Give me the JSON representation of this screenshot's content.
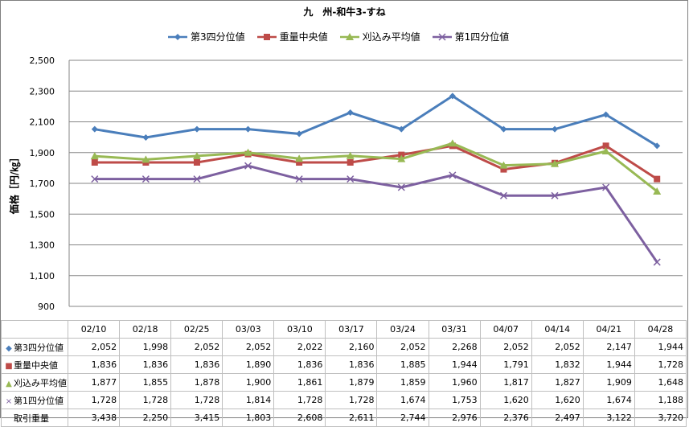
{
  "chart_data": {
    "type": "line",
    "title": "九　州-和牛3-すね",
    "ylabel": "価格［円/㎏］",
    "xlabel": "",
    "ylim": [
      900,
      2500
    ],
    "yticks": [
      "2,500",
      "2,300",
      "2,100",
      "1,900",
      "1,700",
      "1,500",
      "1,300",
      "1,100",
      "900"
    ],
    "grid": true,
    "legend_position": "top",
    "categories": [
      "02/10",
      "02/18",
      "02/25",
      "03/03",
      "03/10",
      "03/17",
      "03/24",
      "03/31",
      "04/07",
      "04/14",
      "04/21",
      "04/28"
    ],
    "series": [
      {
        "name": "第3四分位値",
        "color": "#4a7ebb",
        "marker": "diamond",
        "values": [
          2052,
          1998,
          2052,
          2052,
          2022,
          2160,
          2052,
          2268,
          2052,
          2052,
          2147,
          1944
        ]
      },
      {
        "name": "重量中央値",
        "color": "#be4b48",
        "marker": "square",
        "values": [
          1836,
          1836,
          1836,
          1890,
          1836,
          1836,
          1885,
          1944,
          1791,
          1832,
          1944,
          1728
        ]
      },
      {
        "name": "刈込み平均値",
        "color": "#98b954",
        "marker": "triangle",
        "values": [
          1877,
          1855,
          1878,
          1900,
          1861,
          1879,
          1859,
          1960,
          1817,
          1827,
          1909,
          1648
        ]
      },
      {
        "name": "第1四分位値",
        "color": "#7d60a0",
        "marker": "cross",
        "values": [
          1728,
          1728,
          1728,
          1814,
          1728,
          1728,
          1674,
          1753,
          1620,
          1620,
          1674,
          1188
        ]
      }
    ]
  },
  "table": {
    "rows": [
      {
        "label": "第3四分位値",
        "marker": "◆",
        "color": "#4a7ebb",
        "cells": [
          "2,052",
          "1,998",
          "2,052",
          "2,052",
          "2,022",
          "2,160",
          "2,052",
          "2,268",
          "2,052",
          "2,052",
          "2,147",
          "1,944"
        ]
      },
      {
        "label": "重量中央値",
        "marker": "■",
        "color": "#be4b48",
        "cells": [
          "1,836",
          "1,836",
          "1,836",
          "1,890",
          "1,836",
          "1,836",
          "1,885",
          "1,944",
          "1,791",
          "1,832",
          "1,944",
          "1,728"
        ]
      },
      {
        "label": "刈込み平均値",
        "marker": "▲",
        "color": "#98b954",
        "cells": [
          "1,877",
          "1,855",
          "1,878",
          "1,900",
          "1,861",
          "1,879",
          "1,859",
          "1,960",
          "1,817",
          "1,827",
          "1,909",
          "1,648"
        ]
      },
      {
        "label": "第1四分位値",
        "marker": "×",
        "color": "#7d60a0",
        "cells": [
          "1,728",
          "1,728",
          "1,728",
          "1,814",
          "1,728",
          "1,728",
          "1,674",
          "1,753",
          "1,620",
          "1,620",
          "1,674",
          "1,188"
        ]
      },
      {
        "label": "取引重量",
        "marker": "",
        "color": "#000000",
        "cells": [
          "3,438",
          "2,250",
          "3,415",
          "1,803",
          "2,608",
          "2,611",
          "2,744",
          "2,976",
          "2,376",
          "2,497",
          "3,122",
          "3,720"
        ]
      }
    ]
  }
}
